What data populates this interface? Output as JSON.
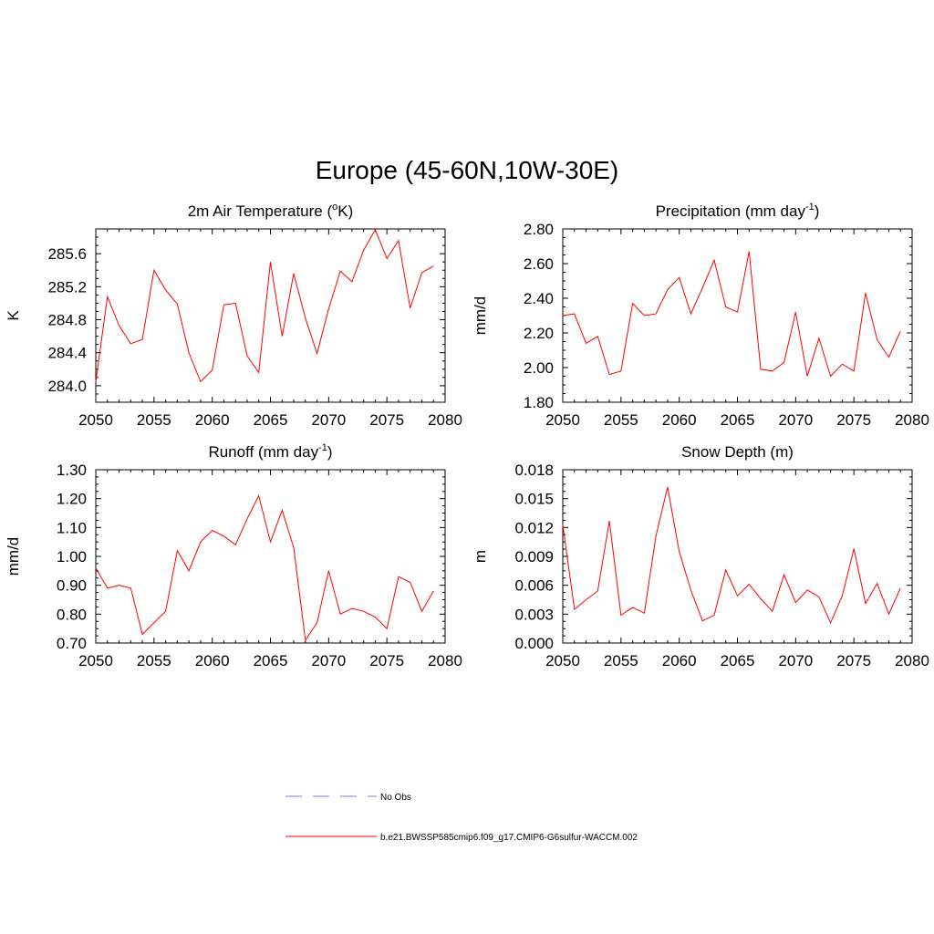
{
  "title": "Europe (45-60N,10W-30E)",
  "legend": {
    "obs_label": "No Obs",
    "model_label": "b.e21.BWSSP585cmip6.f09_g17.CMIP6-G6sulfur-WACCM.002",
    "obs_color": "#9999dd",
    "model_color": "#ff0000"
  },
  "chart_data": [
    {
      "type": "line",
      "title": "2m Air Temperature (°K)",
      "title_base": "2m Air Temperature (",
      "title_sup": "o",
      "title_tail": "K)",
      "xlabel": "",
      "ylabel": "K",
      "xlim": [
        2050,
        2080
      ],
      "ylim": [
        283.8,
        285.9
      ],
      "x_ticks": [
        2050,
        2055,
        2060,
        2065,
        2070,
        2075,
        2080
      ],
      "y_ticks": [
        284.0,
        284.4,
        284.8,
        285.2,
        285.6
      ],
      "y_tick_labels": [
        "284.0",
        "284.4",
        "284.8",
        "285.2",
        "285.6"
      ],
      "x": [
        2050,
        2051,
        2052,
        2053,
        2054,
        2055,
        2056,
        2057,
        2058,
        2059,
        2060,
        2061,
        2062,
        2063,
        2064,
        2065,
        2066,
        2067,
        2068,
        2069,
        2070,
        2071,
        2072,
        2073,
        2074,
        2075,
        2076,
        2077,
        2078,
        2079
      ],
      "series": [
        {
          "values": [
            284.05,
            285.08,
            284.73,
            284.51,
            284.56,
            285.4,
            285.16,
            284.99,
            284.4,
            284.05,
            284.19,
            284.98,
            285.0,
            284.36,
            284.16,
            285.5,
            284.6,
            285.36,
            284.82,
            284.39,
            284.93,
            285.39,
            285.26,
            285.64,
            285.89,
            285.54,
            285.76,
            284.94,
            285.37,
            285.45
          ]
        }
      ]
    },
    {
      "type": "line",
      "title": "Precipitation (mm day-1)",
      "title_base": "Precipitation (mm day",
      "title_sup": "-1",
      "title_tail": ")",
      "xlabel": "",
      "ylabel": "mm/d",
      "xlim": [
        2050,
        2080
      ],
      "ylim": [
        1.8,
        2.8
      ],
      "x_ticks": [
        2050,
        2055,
        2060,
        2065,
        2070,
        2075,
        2080
      ],
      "y_ticks": [
        1.8,
        2.0,
        2.2,
        2.4,
        2.6,
        2.8
      ],
      "y_tick_labels": [
        "1.80",
        "2.00",
        "2.20",
        "2.40",
        "2.60",
        "2.80"
      ],
      "x": [
        2050,
        2051,
        2052,
        2053,
        2054,
        2055,
        2056,
        2057,
        2058,
        2059,
        2060,
        2061,
        2062,
        2063,
        2064,
        2065,
        2066,
        2067,
        2068,
        2069,
        2070,
        2071,
        2072,
        2073,
        2074,
        2075,
        2076,
        2077,
        2078,
        2079
      ],
      "series": [
        {
          "values": [
            2.3,
            2.31,
            2.14,
            2.18,
            1.96,
            1.98,
            2.37,
            2.3,
            2.31,
            2.45,
            2.52,
            2.31,
            2.46,
            2.62,
            2.35,
            2.32,
            2.67,
            1.99,
            1.98,
            2.03,
            2.32,
            1.95,
            2.17,
            1.95,
            2.02,
            1.98,
            2.43,
            2.16,
            2.06,
            2.21
          ]
        }
      ]
    },
    {
      "type": "line",
      "title": "Runoff (mm day-1)",
      "title_base": "Runoff (mm day",
      "title_sup": "-1",
      "title_tail": ")",
      "xlabel": "",
      "ylabel": "mm/d",
      "xlim": [
        2050,
        2080
      ],
      "ylim": [
        0.7,
        1.3
      ],
      "x_ticks": [
        2050,
        2055,
        2060,
        2065,
        2070,
        2075,
        2080
      ],
      "y_ticks": [
        0.7,
        0.8,
        0.9,
        1.0,
        1.1,
        1.2,
        1.3
      ],
      "y_tick_labels": [
        "0.70",
        "0.80",
        "0.90",
        "1.00",
        "1.10",
        "1.20",
        "1.30"
      ],
      "x": [
        2050,
        2051,
        2052,
        2053,
        2054,
        2055,
        2056,
        2057,
        2058,
        2059,
        2060,
        2061,
        2062,
        2063,
        2064,
        2065,
        2066,
        2067,
        2068,
        2069,
        2070,
        2071,
        2072,
        2073,
        2074,
        2075,
        2076,
        2077,
        2078,
        2079
      ],
      "series": [
        {
          "values": [
            0.96,
            0.89,
            0.9,
            0.89,
            0.73,
            0.77,
            0.81,
            1.02,
            0.95,
            1.05,
            1.09,
            1.07,
            1.04,
            1.13,
            1.21,
            1.05,
            1.16,
            1.03,
            0.71,
            0.77,
            0.95,
            0.8,
            0.82,
            0.81,
            0.79,
            0.75,
            0.93,
            0.91,
            0.81,
            0.88
          ]
        }
      ]
    },
    {
      "type": "line",
      "title": "Snow Depth (m)",
      "title_base": "Snow Depth (m)",
      "title_sup": "",
      "title_tail": "",
      "xlabel": "",
      "ylabel": "m",
      "xlim": [
        2050,
        2080
      ],
      "ylim": [
        0.0,
        0.018
      ],
      "x_ticks": [
        2050,
        2055,
        2060,
        2065,
        2070,
        2075,
        2080
      ],
      "y_ticks": [
        0.0,
        0.003,
        0.006,
        0.009,
        0.012,
        0.015,
        0.018
      ],
      "y_tick_labels": [
        "0.000",
        "0.003",
        "0.006",
        "0.009",
        "0.012",
        "0.015",
        "0.018"
      ],
      "x": [
        2050,
        2051,
        2052,
        2053,
        2054,
        2055,
        2056,
        2057,
        2058,
        2059,
        2060,
        2061,
        2062,
        2063,
        2064,
        2065,
        2066,
        2067,
        2068,
        2069,
        2070,
        2071,
        2072,
        2073,
        2074,
        2075,
        2076,
        2077,
        2078,
        2079
      ],
      "series": [
        {
          "values": [
            0.0123,
            0.0035,
            0.0045,
            0.0054,
            0.0127,
            0.0029,
            0.0037,
            0.0031,
            0.0111,
            0.0162,
            0.0095,
            0.0055,
            0.0023,
            0.0029,
            0.0076,
            0.0049,
            0.0061,
            0.0046,
            0.0033,
            0.0071,
            0.0042,
            0.0055,
            0.0048,
            0.0021,
            0.0049,
            0.0098,
            0.0041,
            0.0062,
            0.003,
            0.0057
          ]
        }
      ]
    }
  ]
}
